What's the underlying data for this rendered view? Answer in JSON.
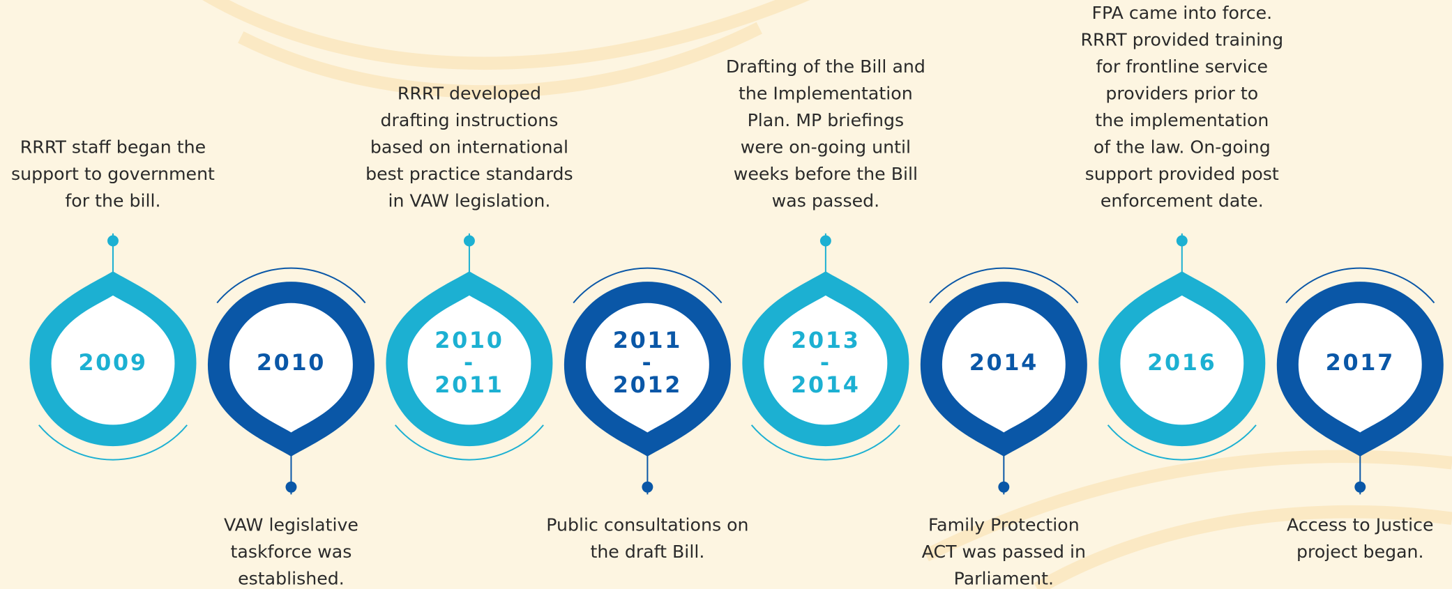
{
  "nodes": [
    {
      "year": [
        "2009"
      ],
      "text": [
        "RRRT staff began the",
        "support to government",
        "for the bill."
      ],
      "style": "light"
    },
    {
      "year": [
        "2010"
      ],
      "text": [
        "VAW legislative",
        "taskforce was",
        "established."
      ],
      "style": "dark"
    },
    {
      "year": [
        "2010",
        "-",
        "2011"
      ],
      "text": [
        "RRRT developed",
        "drafting instructions",
        "based on international",
        "best practice standards",
        "in VAW legislation."
      ],
      "style": "light"
    },
    {
      "year": [
        "2011",
        "-",
        "2012"
      ],
      "text": [
        "Public consultations on",
        "the draft Bill."
      ],
      "style": "dark"
    },
    {
      "year": [
        "2013",
        "-",
        "2014"
      ],
      "text": [
        "Drafting of the Bill and",
        "the Implementation",
        "Plan. MP briefings",
        "were on-going until",
        "weeks before the Bill",
        "was passed."
      ],
      "style": "light"
    },
    {
      "year": [
        "2014"
      ],
      "text": [
        "Family Protection",
        "ACT was passed in",
        "Parliament."
      ],
      "style": "dark"
    },
    {
      "year": [
        "2016"
      ],
      "text": [
        "FPA came into force.",
        "RRRT provided training",
        "for frontline service",
        "providers prior to",
        "the implementation",
        "of the law. On-going",
        "support provided post",
        "enforcement date."
      ],
      "style": "light"
    },
    {
      "year": [
        "2017"
      ],
      "text": [
        "Access to Justice",
        "project began."
      ],
      "style": "dark"
    }
  ]
}
